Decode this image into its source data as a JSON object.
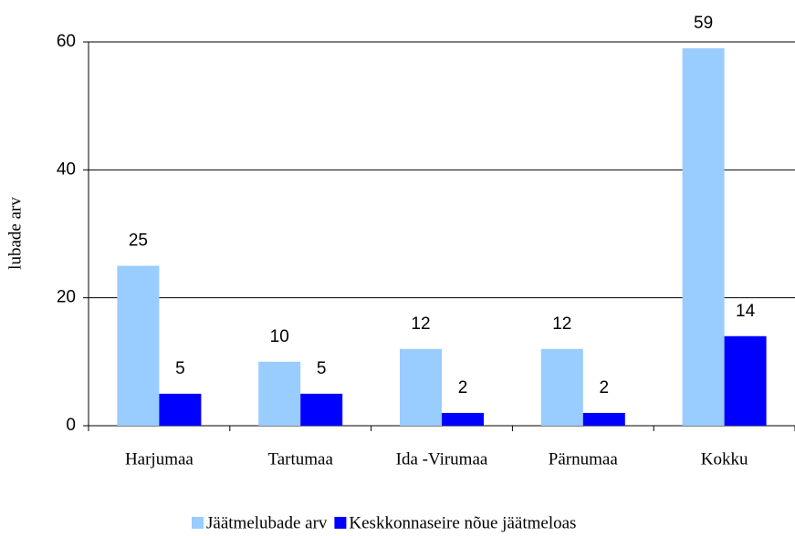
{
  "chart_data": {
    "type": "bar",
    "y_label": "lubade arv",
    "categories": [
      "Harjumaa",
      "Tartumaa",
      "Ida -Virumaa",
      "Pärnumaa",
      "Kokku"
    ],
    "series": [
      {
        "name": "Jäätmelubade arv",
        "color": "#99ccff",
        "values": [
          25,
          10,
          12,
          12,
          59
        ]
      },
      {
        "name": "Keskkonnaseire nõue jäätmeloas",
        "color": "#0000ff",
        "values": [
          5,
          5,
          2,
          2,
          14
        ]
      }
    ],
    "ylim": [
      0,
      60
    ],
    "yticks": [
      0,
      20,
      40,
      60
    ],
    "grid": true,
    "legend": "bottom",
    "data_labels": true
  }
}
